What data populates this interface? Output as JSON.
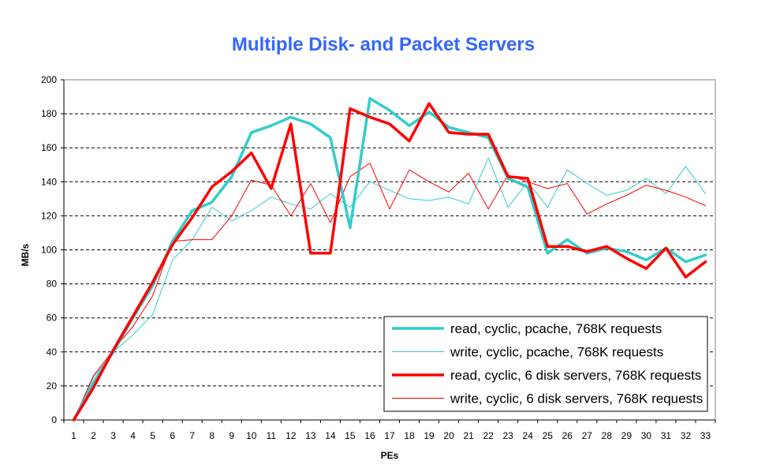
{
  "chart_data": {
    "type": "line",
    "title": "Multiple Disk- and Packet Servers",
    "xlabel": "PEs",
    "ylabel": "MB/s",
    "ylim": [
      0,
      200
    ],
    "yticks": [
      0,
      20,
      40,
      60,
      80,
      100,
      120,
      140,
      160,
      180,
      200
    ],
    "grid": "horizontal dashed",
    "legend_position": "bottom-right",
    "x": [
      1,
      2,
      3,
      4,
      5,
      6,
      7,
      8,
      9,
      10,
      11,
      12,
      13,
      14,
      15,
      16,
      17,
      18,
      19,
      20,
      21,
      22,
      23,
      24,
      25,
      26,
      27,
      28,
      29,
      30,
      31,
      32,
      33
    ],
    "series": [
      {
        "name": "read, cyclic, pcache, 768K requests",
        "color": "#33cccc",
        "width": 3.5,
        "values": [
          0,
          22,
          40,
          60,
          79,
          105,
          123,
          128,
          143,
          169,
          173,
          178,
          174,
          166,
          113,
          189,
          182,
          173,
          181,
          172,
          169,
          166,
          142,
          137,
          98,
          106,
          98,
          101,
          99,
          94,
          101,
          93,
          97
        ]
      },
      {
        "name": "write, cyclic, pcache, 768K requests",
        "color": "#33cccc",
        "width": 1,
        "values": [
          0,
          25,
          40,
          50,
          62,
          94,
          106,
          125,
          117,
          123,
          131,
          127,
          124,
          133,
          125,
          140,
          135,
          130,
          129,
          131,
          127,
          154,
          125,
          140,
          125,
          147,
          139,
          132,
          135,
          142,
          133,
          149,
          133
        ]
      },
      {
        "name": "read, cyclic, 6 disk servers, 768K requests",
        "color": "#ff0000",
        "width": 3.5,
        "values": [
          0,
          19,
          41,
          61,
          81,
          103,
          119,
          137,
          146,
          157,
          136,
          174,
          98,
          98,
          183,
          178,
          174,
          164,
          186,
          169,
          168,
          168,
          143,
          142,
          102,
          102,
          99,
          102,
          95,
          89,
          101,
          84,
          93
        ]
      },
      {
        "name": "write, cyclic, 6 disk servers, 768K requests",
        "color": "#ff0000",
        "width": 1,
        "values": [
          0,
          26,
          41,
          55,
          73,
          105,
          106,
          106,
          120,
          141,
          138,
          120,
          139,
          116,
          143,
          151,
          124,
          147,
          140,
          134,
          145,
          124,
          144,
          140,
          136,
          139,
          121,
          127,
          132,
          138,
          135,
          131,
          126
        ]
      }
    ]
  }
}
